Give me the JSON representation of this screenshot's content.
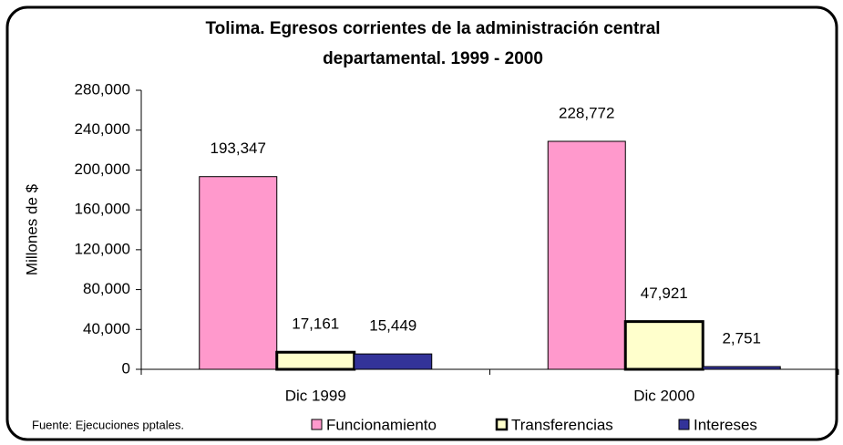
{
  "chart_data": {
    "type": "bar",
    "title_lines": [
      "Tolima. Egresos corrientes de la administración central",
      "departamental.  1999 - 2000"
    ],
    "y_label": "Millones de $",
    "source": "Fuente: Ejecuciones pptales.",
    "categories": [
      "Dic 1999",
      "Dic 2000"
    ],
    "series": [
      {
        "name": "Funcionamiento",
        "color": "#ff99cc",
        "values": [
          193347,
          228772
        ],
        "value_labels": [
          "193,347",
          "228,772"
        ]
      },
      {
        "name": "Transferencias",
        "color": "#ffffcc",
        "values": [
          17161,
          47921
        ],
        "value_labels": [
          "17,161",
          "47,921"
        ]
      },
      {
        "name": "Intereses",
        "color": "#333399",
        "values": [
          15449,
          2751
        ],
        "value_labels": [
          "15,449",
          "2,751"
        ]
      }
    ],
    "ylim": [
      0,
      280000
    ],
    "yticks": [
      0,
      {
        "value": 40000,
        "label": "40,000"
      },
      {
        "value": 80000,
        "label": "80,000"
      },
      {
        "value": 120000,
        "label": "120,000"
      },
      {
        "value": 160000,
        "label": "160,000"
      },
      {
        "value": 200000,
        "label": "200,000"
      },
      {
        "value": 240000,
        "label": "240,000"
      },
      {
        "value": 280000,
        "label": "280,000"
      }
    ],
    "grid": false
  }
}
